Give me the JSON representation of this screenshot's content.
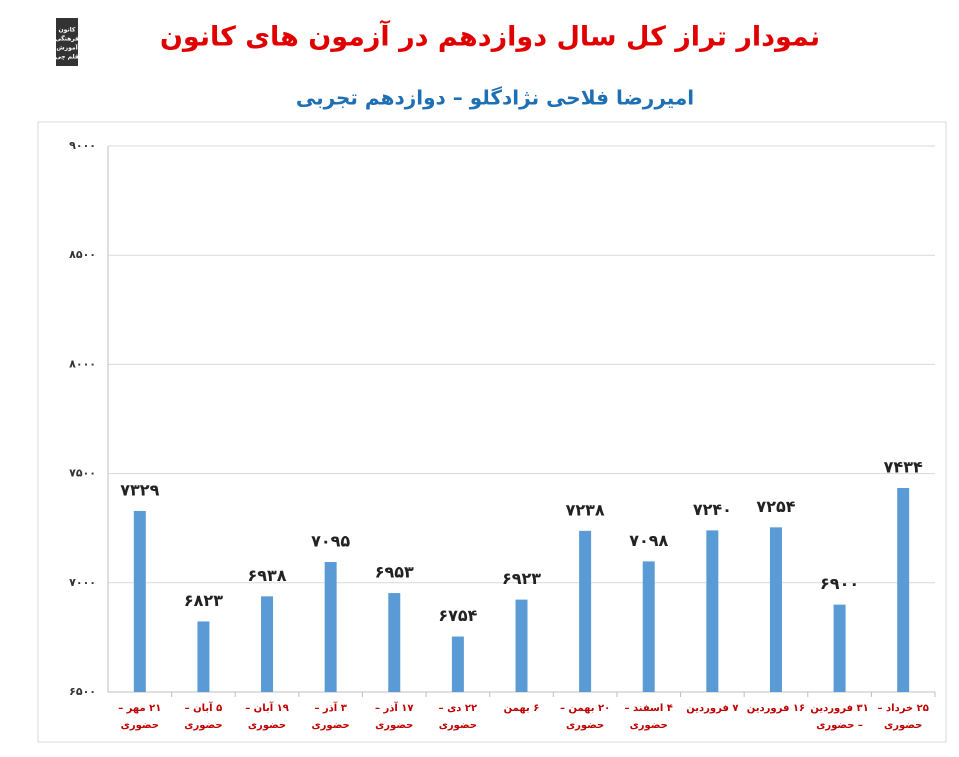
{
  "logo": {
    "lines": [
      "کانون",
      "فرهنگی",
      "آموزش",
      "قلم چی"
    ]
  },
  "chart_data": {
    "type": "bar",
    "title": "نمودار تراز کل سال دوازدهم در آزمون های کانون",
    "subtitle": "امیررضا فلاحی نژادگلو – دوازدهم تجربی",
    "categories": [
      "۲۱ مهر – حضوری",
      "۵ آبان – حضوری",
      "۱۹ آبان – حضوری",
      "۳ آذر – حضوری",
      "۱۷ آذر – حضوری",
      "۲۲ دی – حضوری",
      "۶ بهمن",
      "۲۰ بهمن – حضوری",
      "۴ اسفند – حضوری",
      "۷ فروردین",
      "۱۶ فروردین",
      "۳۱ فروردین – حضوری",
      "۲۵ خرداد – حضوری"
    ],
    "values": [
      7329,
      6823,
      6938,
      7095,
      6953,
      6754,
      6923,
      7238,
      7098,
      7240,
      7254,
      6900,
      7434
    ],
    "value_labels": [
      "۷۳۲۹",
      "۶۸۲۳",
      "۶۹۳۸",
      "۷۰۹۵",
      "۶۹۵۳",
      "۶۷۵۴",
      "۶۹۲۳",
      "۷۲۳۸",
      "۷۰۹۸",
      "۷۲۴۰",
      "۷۲۵۴",
      "۶۹۰۰",
      "۷۴۳۴"
    ],
    "color": "#5b9bd5",
    "ylim": [
      6500,
      9000
    ],
    "yticks": [
      {
        "value": 6500,
        "label": "۶۵۰۰"
      },
      {
        "value": 7000,
        "label": "۷۰۰۰"
      },
      {
        "value": 7500,
        "label": "۷۵۰۰"
      },
      {
        "value": 8000,
        "label": "۸۰۰۰"
      },
      {
        "value": 8500,
        "label": "۸۵۰۰"
      },
      {
        "value": 9000,
        "label": "۹۰۰۰"
      }
    ],
    "grid": true
  }
}
